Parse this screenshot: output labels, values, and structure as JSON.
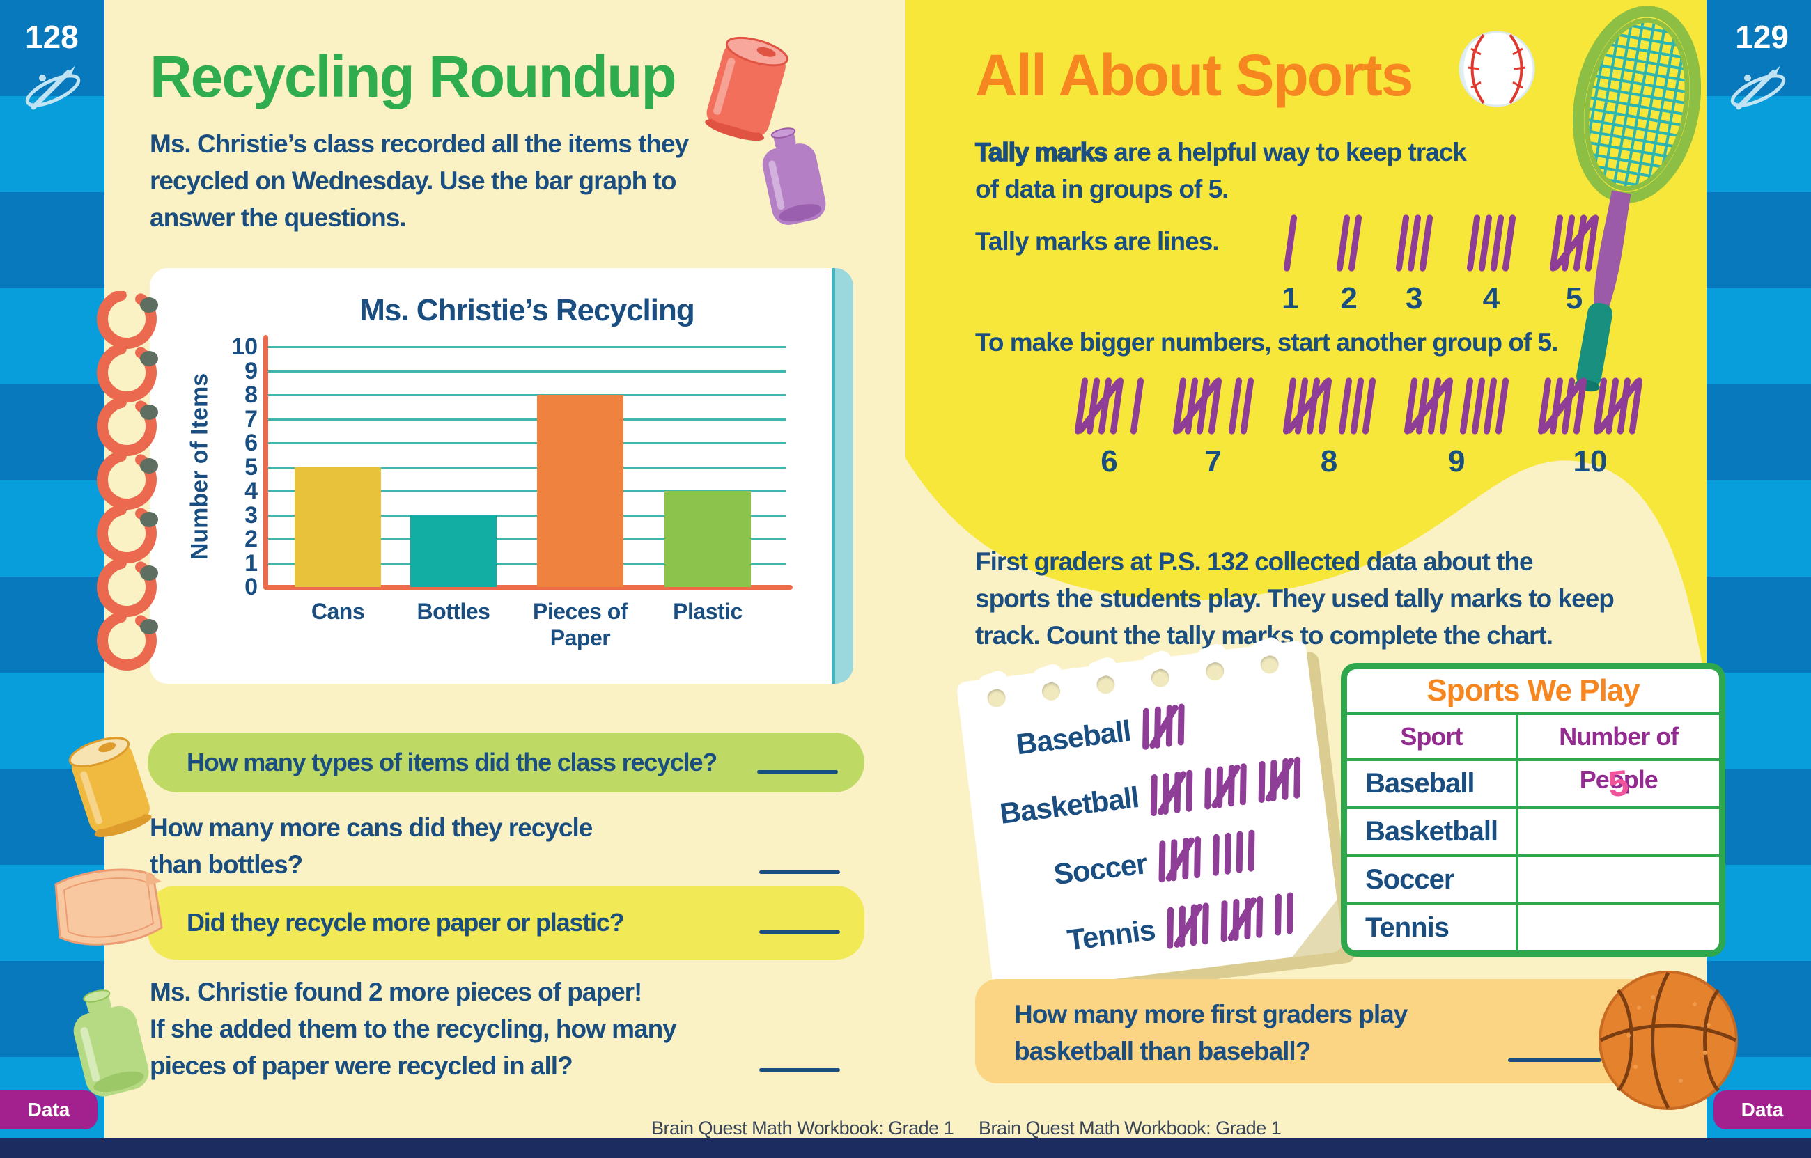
{
  "colors": {
    "page_cream": "#FAF2C5",
    "bright_yellow": "#F8E73B",
    "border_blue_dark": "#0879BD",
    "border_blue_light": "#089EDC",
    "navy_text": "#1A4E80",
    "green_title": "#2FAD4E",
    "orange_title": "#F6861F",
    "tally_purple": "#8F3E97",
    "table_green": "#2EA74D",
    "table_purple": "#942B90",
    "handwriting_pink": "#F2549C",
    "data_tab_purple": "#A2218F",
    "band_green": "#BED964",
    "band_yellow": "#F2E957",
    "band_orange": "#FBD583",
    "bottom_strip_navy": "#1C2B60"
  },
  "left_page": {
    "page_number": "128",
    "title": "Recycling Roundup",
    "intro": "Ms. Christie’s class recorded all the items they\nrecycled on Wednesday. Use the bar graph to\nanswer the questions.",
    "chart_data": {
      "type": "bar",
      "title": "Ms. Christie’s Recycling",
      "categories": [
        "Cans",
        "Bottles",
        "Pieces of\nPaper",
        "Plastic"
      ],
      "values": [
        5,
        3,
        8,
        4
      ],
      "colors": [
        "#E8C23B",
        "#12AEA3",
        "#F0823F",
        "#8CC34C"
      ],
      "xlabel": "",
      "ylabel": "Number of Items",
      "ylim": [
        0,
        10
      ],
      "grid": true,
      "legend": "none"
    },
    "questions": [
      {
        "text": "How many types of items did the class recycle?",
        "band": "green"
      },
      {
        "text": "How many more cans did they recycle\nthan bottles?",
        "band": "none"
      },
      {
        "text": "Did they recycle more paper or plastic?",
        "band": "yellow"
      },
      {
        "text": "Ms. Christie found 2 more pieces of paper!\nIf she added them to the recycling, how many\npieces of paper were recycled in all?",
        "band": "none"
      }
    ],
    "footer": "Brain Quest Math Workbook: Grade 1",
    "data_tab": "Data"
  },
  "right_page": {
    "page_number": "129",
    "title": "All About Sports",
    "tally_intro_bold": "Tally marks",
    "tally_intro_rest": " are a helpful way to keep track\nof data in groups of 5.",
    "tally_lines_label": "Tally marks are lines.",
    "tally_row_small": [
      {
        "groups": [
          1
        ],
        "label": "1"
      },
      {
        "groups": [
          2
        ],
        "label": "2"
      },
      {
        "groups": [
          3
        ],
        "label": "3"
      },
      {
        "groups": [
          4
        ],
        "label": "4"
      },
      {
        "groups": [
          5
        ],
        "label": "5"
      }
    ],
    "bigger_text": "To make bigger numbers, start another group of 5.",
    "tally_row_big": [
      {
        "groups": [
          5,
          1
        ],
        "label": "6"
      },
      {
        "groups": [
          5,
          2
        ],
        "label": "7"
      },
      {
        "groups": [
          5,
          3
        ],
        "label": "8"
      },
      {
        "groups": [
          5,
          4
        ],
        "label": "9"
      },
      {
        "groups": [
          5,
          5
        ],
        "label": "10"
      }
    ],
    "paragraph": "First graders at P.S. 132 collected data about the\nsports the students play. They used tally marks to keep\ntrack. Count the tally marks to complete the chart.",
    "notepad": [
      {
        "label": "Baseball",
        "groups": [
          5
        ]
      },
      {
        "label": "Basketball",
        "groups": [
          5,
          5,
          5
        ]
      },
      {
        "label": "Soccer",
        "groups": [
          5,
          4
        ]
      },
      {
        "label": "Tennis",
        "groups": [
          5,
          5,
          2
        ]
      }
    ],
    "table": {
      "title": "Sports We Play",
      "headers": [
        "Sport",
        "Number of People"
      ],
      "rows": [
        {
          "sport": "Baseball",
          "value": "5"
        },
        {
          "sport": "Basketball",
          "value": ""
        },
        {
          "sport": "Soccer",
          "value": ""
        },
        {
          "sport": "Tennis",
          "value": ""
        }
      ]
    },
    "question": "How many more first graders play\nbasketball than baseball?",
    "footer": "Brain Quest Math Workbook: Grade 1",
    "data_tab": "Data"
  }
}
